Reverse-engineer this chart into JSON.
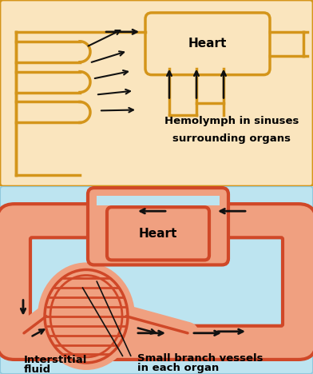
{
  "top_bg": "#FAE5BE",
  "top_border": "#D4951A",
  "bot_bg": "#BDE4F0",
  "heart_fill_top": "#FAE5BE",
  "heart_stroke_top": "#D4951A",
  "heart_fill_bot": "#F0A080",
  "heart_stroke_bot": "#D04828",
  "vessel_fill_bot": "#F0A080",
  "vessel_stroke_bot": "#D04828",
  "arrow_color": "#111111",
  "top_label": "Heart",
  "top_note1": "Hemolymph in sinuses",
  "top_note2": "surrounding organs",
  "bot_label": "Heart",
  "bot_note1": "Interstitial",
  "bot_note2": "fluid",
  "bot_note3": "Small branch vessels",
  "bot_note4": "in each organ"
}
